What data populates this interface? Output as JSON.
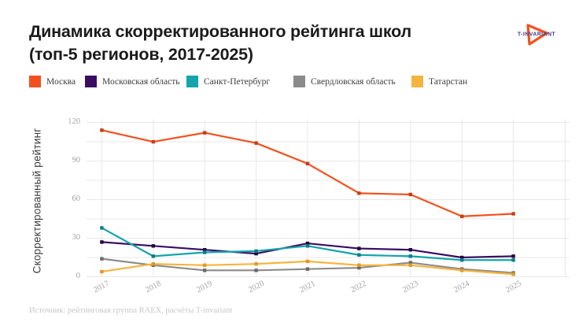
{
  "title": {
    "line1": "Динамика скорректированного рейтинга школ",
    "line2": "(топ-5 регионов, 2017-2025)"
  },
  "logo": {
    "text": "T-INVARIANT",
    "triangle_color": "#f4501e",
    "text_color": "#453c8c"
  },
  "footer": {
    "source": "Источник: рейтинговая группа RAEX, расчёты T-invariant"
  },
  "chart_data": {
    "type": "line",
    "title": "Динамика скорректированного рейтинга школ (топ-5 регионов, 2017-2025)",
    "xlabel": "",
    "ylabel": "Скорректированный рейтинг",
    "categories": [
      "2017",
      "2018",
      "2019",
      "2020",
      "2021",
      "2022",
      "2023",
      "2024",
      "2025"
    ],
    "y_ticks": [
      0,
      30,
      60,
      90,
      120
    ],
    "ylim": [
      0,
      120
    ],
    "grid": true,
    "grid_step": 15,
    "grid_color": "#e8e8e8",
    "legend_position": "top",
    "series": [
      {
        "name": "Москва",
        "color": "#f4501e",
        "marker_color": "#c93c12",
        "values": [
          114,
          105,
          112,
          104,
          88,
          65,
          64,
          47,
          49
        ]
      },
      {
        "name": "Московская область",
        "color": "#3a0d63",
        "marker_color": "#22053e",
        "values": [
          27,
          24,
          21,
          18,
          26,
          22,
          21,
          15,
          16
        ]
      },
      {
        "name": "Санкт-Петербург",
        "color": "#14a4ac",
        "marker_color": "#0b7e86",
        "values": [
          38,
          16,
          19,
          20,
          24,
          17,
          16,
          13,
          13
        ]
      },
      {
        "name": "Свердловская область",
        "color": "#8b8b8b",
        "marker_color": "#6b6b6b",
        "values": [
          14,
          9,
          5,
          5,
          6,
          7,
          11,
          6,
          3
        ]
      },
      {
        "name": "Татарстан",
        "color": "#f5b43d",
        "marker_color": "#dd9b26",
        "values": [
          4,
          10,
          9,
          10,
          12,
          9,
          9,
          5,
          2
        ]
      }
    ],
    "legend_item_lefts": [
      37,
      108,
      237,
      373,
      523
    ]
  }
}
